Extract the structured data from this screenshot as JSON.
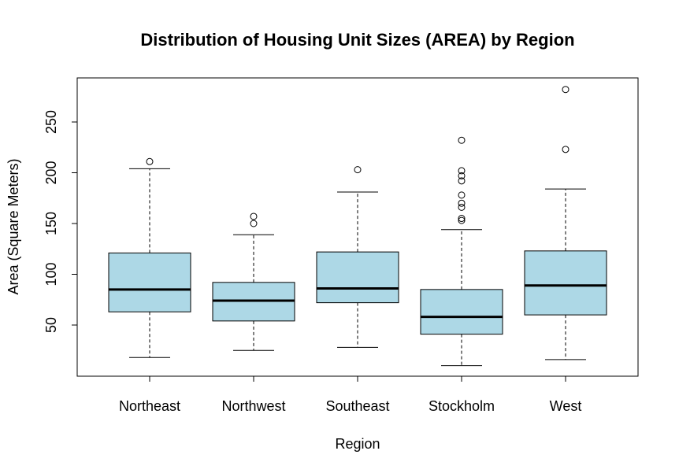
{
  "chart_data": {
    "type": "box",
    "title": "Distribution of Housing Unit Sizes (AREA) by Region",
    "xlabel": "Region",
    "ylabel": "Area (Square Meters)",
    "ylim": [
      0,
      290
    ],
    "yticks": [
      50,
      100,
      150,
      200,
      250
    ],
    "box_color": "#ADD8E6",
    "categories": [
      "Northeast",
      "Northwest",
      "Southeast",
      "Stockholm",
      "West"
    ],
    "boxes": [
      {
        "whisker_low": 18,
        "q1": 63,
        "median": 85,
        "q3": 121,
        "whisker_high": 204,
        "outliers": [
          211
        ]
      },
      {
        "whisker_low": 25,
        "q1": 54,
        "median": 74,
        "q3": 92,
        "whisker_high": 139,
        "outliers": [
          150,
          157
        ]
      },
      {
        "whisker_low": 28,
        "q1": 72,
        "median": 86,
        "q3": 122,
        "whisker_high": 181,
        "outliers": [
          203
        ]
      },
      {
        "whisker_low": 10,
        "q1": 41,
        "median": 58,
        "q3": 85,
        "whisker_high": 144,
        "outliers": [
          153,
          155,
          166,
          170,
          178,
          192,
          197,
          202,
          232
        ]
      },
      {
        "whisker_low": 16,
        "q1": 60,
        "median": 89,
        "q3": 123,
        "whisker_high": 184,
        "outliers": [
          223,
          282
        ]
      }
    ]
  }
}
